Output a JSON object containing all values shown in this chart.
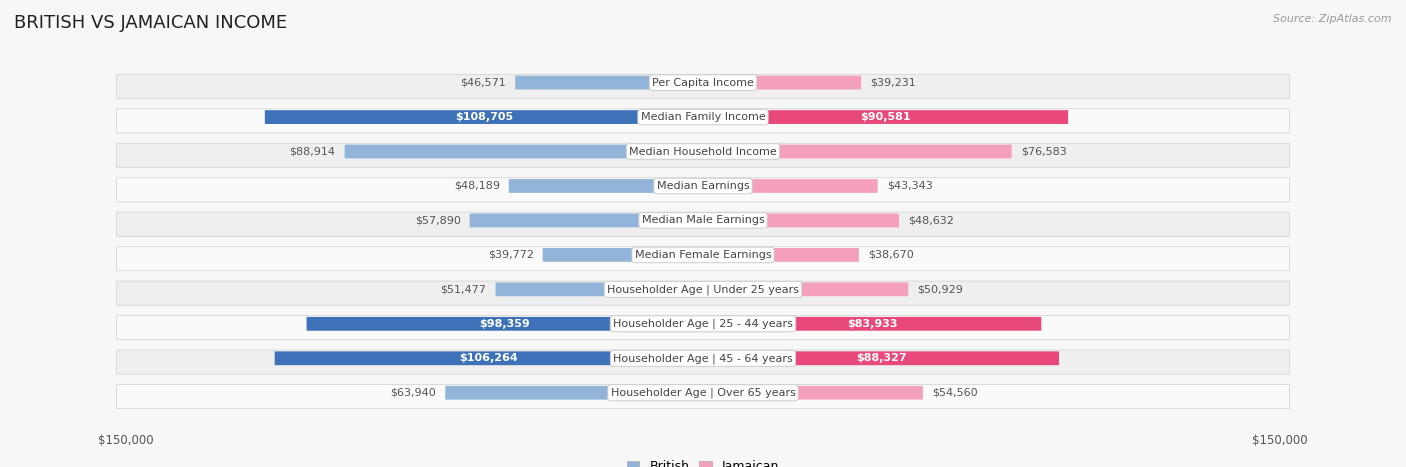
{
  "title": "BRITISH VS JAMAICAN INCOME",
  "source": "Source: ZipAtlas.com",
  "categories": [
    "Per Capita Income",
    "Median Family Income",
    "Median Household Income",
    "Median Earnings",
    "Median Male Earnings",
    "Median Female Earnings",
    "Householder Age | Under 25 years",
    "Householder Age | 25 - 44 years",
    "Householder Age | 45 - 64 years",
    "Householder Age | Over 65 years"
  ],
  "british_values": [
    46571,
    108705,
    88914,
    48189,
    57890,
    39772,
    51477,
    98359,
    106264,
    63940
  ],
  "jamaican_values": [
    39231,
    90581,
    76583,
    43343,
    48632,
    38670,
    50929,
    83933,
    88327,
    54560
  ],
  "british_color": "#91b4d8",
  "jamaican_color": "#f4a0bc",
  "british_highlight_color": "#3d72b8",
  "jamaican_highlight_color": "#e8497a",
  "highlight_rows": [
    1,
    7,
    8
  ],
  "max_value": 150000,
  "bg_color": "#f7f7f7",
  "row_bg_even": "#efefef",
  "row_bg_odd": "#fafafa",
  "legend_british": "British",
  "legend_jamaican": "Jamaican",
  "title_fontsize": 13,
  "label_fontsize": 8,
  "value_fontsize": 8
}
